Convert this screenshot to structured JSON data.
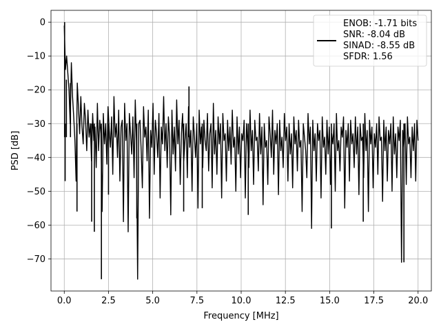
{
  "chart_data": {
    "type": "line",
    "xlabel": "Frequency [MHz]",
    "ylabel": "PSD [dB]",
    "xlim": [
      -0.75,
      20.75
    ],
    "ylim": [
      -79.5,
      3.5
    ],
    "grid": true,
    "legend_placement": "upper-right",
    "x_ticks": [
      0.0,
      2.5,
      5.0,
      7.5,
      10.0,
      12.5,
      15.0,
      17.5,
      20.0
    ],
    "x_tick_labels": [
      "0.0",
      "2.5",
      "5.0",
      "7.5",
      "10.0",
      "12.5",
      "15.0",
      "17.5",
      "20.0"
    ],
    "y_ticks": [
      0,
      -10,
      -20,
      -30,
      -40,
      -50,
      -60,
      -70
    ],
    "y_tick_labels": [
      "0",
      "−10",
      "−20",
      "−30",
      "−40",
      "−50",
      "−60",
      "−70"
    ],
    "legend_entries": [
      "ENOB: -1.71 bits",
      "SNR: -8.04 dB",
      "SINAD: -8.55 dB",
      "SFDR: 1.56"
    ],
    "series_color": "#000000",
    "series": [
      {
        "x_range": [
          0.0,
          20.0
        ],
        "values": [
          -1,
          -14,
          -10,
          -15,
          -20,
          -30,
          -12,
          -22,
          -28,
          -35,
          -47,
          -18,
          -25,
          -33,
          -22,
          -31,
          -36,
          -24,
          -29,
          -38,
          -26,
          -34,
          -30,
          -41,
          -27,
          -35,
          -31,
          -43,
          -24,
          -38,
          -29,
          -33,
          -56,
          -27,
          -36,
          -30,
          -42,
          -25,
          -32,
          -37,
          -28,
          -45,
          -22,
          -34,
          -30,
          -40,
          -26,
          -47,
          -31,
          -29,
          -59,
          -24,
          -35,
          -30,
          -62,
          -27,
          -33,
          -39,
          -28,
          -46,
          -23,
          -35,
          -76,
          -30,
          -29,
          -38,
          -49,
          -25,
          -34,
          -31,
          -41,
          -26,
          -58,
          -32,
          -37,
          -24,
          -45,
          -29,
          -33,
          -40,
          -27,
          -52,
          -31,
          -36,
          -22,
          -38,
          -30,
          -43,
          -28,
          -34,
          -57,
          -26,
          -39,
          -31,
          -44,
          -23,
          -36,
          -29,
          -48,
          -33,
          -27,
          -41,
          -35,
          -30,
          -46,
          -25,
          -37,
          -32,
          -50,
          -28,
          -34,
          -40,
          -30,
          -55,
          -26,
          -36,
          -31,
          -43,
          -29,
          -35,
          -38,
          -27,
          -44,
          -33,
          -30,
          -49,
          -24,
          -39,
          -32,
          -45,
          -28,
          -36,
          -30,
          -52,
          -27,
          -35,
          -33,
          -47,
          -29,
          -38,
          -31,
          -42,
          -26,
          -37,
          -34,
          -50,
          -28,
          -39,
          -31,
          -46,
          -33,
          -35,
          -29,
          -52,
          -30,
          -36,
          -43,
          -26,
          -38,
          -32,
          -48,
          -29,
          -35,
          -34,
          -44,
          -27,
          -39,
          -31,
          -54,
          -30,
          -37,
          -35,
          -48,
          -28,
          -33,
          -40,
          -26,
          -45,
          -32,
          -36,
          -30,
          -51,
          -29,
          -38,
          -34,
          -43,
          -27,
          -35,
          -31,
          -47,
          -30,
          -39,
          -33,
          -49,
          -28,
          -36,
          -32,
          -44,
          -29,
          -37,
          -35,
          -56,
          -30,
          -34,
          -38,
          -46,
          -27,
          -36,
          -31,
          -61,
          -29,
          -38,
          -33,
          -47,
          -30,
          -35,
          -32,
          -52,
          -28,
          -37,
          -34,
          -45,
          -29,
          -39,
          -31,
          -48,
          -33,
          -36,
          -30,
          -50,
          -27,
          -38,
          -35,
          -44,
          -31,
          -34,
          -28,
          -55,
          -32,
          -37,
          -30,
          -47,
          -29,
          -36,
          -33,
          -43,
          -28,
          -39,
          -31,
          -51,
          -30,
          -35,
          -34,
          -46,
          -27,
          -38,
          -32,
          -56,
          -29,
          -36,
          -31,
          -49,
          -33,
          -37,
          -30,
          -45,
          -28,
          -35,
          -34,
          -53,
          -29,
          -38,
          -31,
          -47,
          -32,
          -36,
          -30,
          -50,
          -28,
          -39,
          -33,
          -46,
          -31,
          -35,
          -29,
          -71,
          -32,
          -37,
          -30,
          -48,
          -28,
          -36,
          -34,
          -46,
          -31,
          -38,
          -30,
          -47,
          -29,
          -35
        ]
      }
    ],
    "spikes": [
      {
        "x": 0.05,
        "y": -47
      },
      {
        "x": 0.72,
        "y": -56
      },
      {
        "x": 1.55,
        "y": -59
      },
      {
        "x": 1.7,
        "y": -62
      },
      {
        "x": 2.1,
        "y": -76
      },
      {
        "x": 2.5,
        "y": -51
      },
      {
        "x": 4.1,
        "y": -58
      },
      {
        "x": 6.75,
        "y": -56
      },
      {
        "x": 7.8,
        "y": -55
      },
      {
        "x": 10.4,
        "y": -57
      },
      {
        "x": 15.1,
        "y": -61
      },
      {
        "x": 16.9,
        "y": -59
      },
      {
        "x": 19.2,
        "y": -71
      },
      {
        "x": 7.05,
        "y": -19
      },
      {
        "x": 0.12,
        "y": -17
      },
      {
        "x": 0.35,
        "y": -18
      },
      {
        "x": 0.02,
        "y": 0
      }
    ]
  }
}
